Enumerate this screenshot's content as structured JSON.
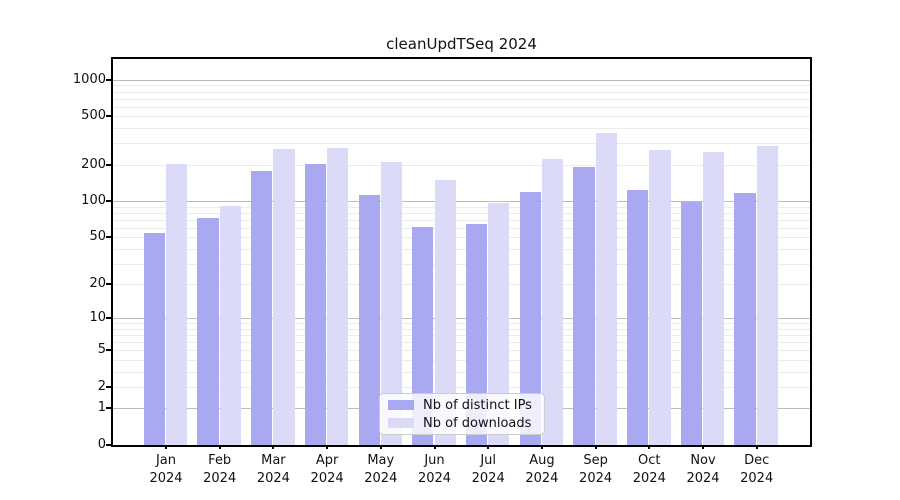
{
  "title": "cleanUpdTSeq 2024",
  "chart_data": {
    "type": "bar",
    "title": "cleanUpdTSeq 2024",
    "categories": [
      "Jan",
      "Feb",
      "Mar",
      "Apr",
      "May",
      "Jun",
      "Jul",
      "Aug",
      "Sep",
      "Oct",
      "Nov",
      "Dec"
    ],
    "year_label": "2024",
    "series": [
      {
        "name": "Nb of distinct IPs",
        "color": "#a9a9f1",
        "values": [
          54,
          73,
          177,
          204,
          112,
          61,
          65,
          120,
          190,
          124,
          98,
          116
        ]
      },
      {
        "name": "Nb of downloads",
        "color": "#dbdbf8",
        "values": [
          204,
          91,
          268,
          273,
          209,
          150,
          97,
          224,
          365,
          265,
          253,
          287
        ]
      }
    ],
    "yscale": "log10(value+1)",
    "ytick_values": [
      1000,
      500,
      200,
      100,
      50,
      20,
      10,
      5,
      2,
      1,
      0
    ],
    "ytick_labels": [
      "1000",
      "500",
      "200",
      "100",
      "50",
      "20",
      "10",
      "5",
      "2",
      "1",
      "0"
    ],
    "major_grid_values": [
      1,
      10,
      100,
      1000
    ],
    "minor_grid_values": [
      2,
      3,
      4,
      5,
      6,
      7,
      8,
      9,
      20,
      30,
      40,
      50,
      60,
      70,
      80,
      90,
      200,
      300,
      400,
      500,
      600,
      700,
      800,
      900
    ],
    "ylim": [
      0,
      1485
    ],
    "xlabel": "",
    "ylabel": "",
    "grid": true,
    "legend_position": "lower center"
  },
  "legend": {
    "item_ips": "Nb of distinct IPs",
    "item_downloads": "Nb of downloads"
  },
  "colors": {
    "ips_bar": "#a9a9f1",
    "downloads_bar": "#dbdbf8",
    "major_grid": "#bcbcbc",
    "minor_grid": "#ececec",
    "spine": "#000000",
    "text": "#111111",
    "legend_border": "#cccccc"
  }
}
